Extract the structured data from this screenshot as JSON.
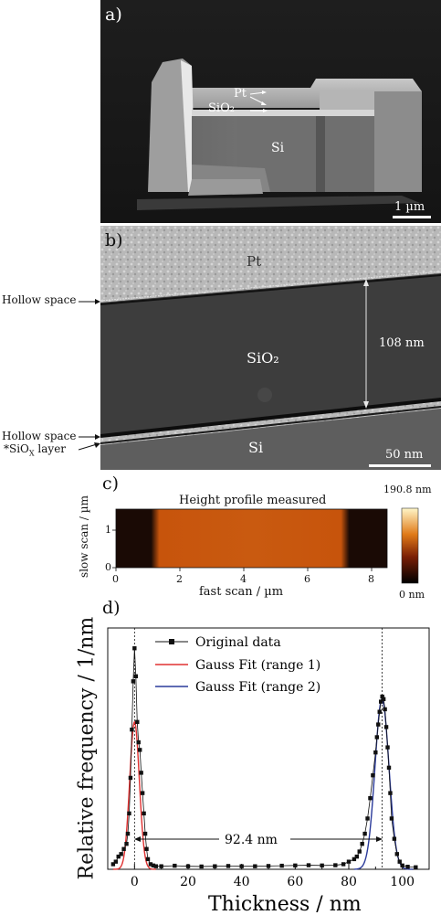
{
  "panel_a": {
    "label": "a)",
    "layers": [
      "Pt",
      "SiO₂",
      "Si"
    ],
    "scalebar": "1 µm"
  },
  "panel_b": {
    "label": "b)",
    "layers": [
      "Pt",
      "SiO₂",
      "Si"
    ],
    "dimension": "108 nm",
    "scalebar": "50 nm",
    "annotations": [
      "Hollow space",
      "Hollow space",
      "*SiO",
      "X",
      " layer"
    ]
  },
  "panel_c": {
    "label": "c)",
    "title": "Height profile measured",
    "xlabel": "fast scan / µm",
    "ylabel": "slow scan / µm",
    "xticks": [
      "0",
      "2",
      "4",
      "6",
      "8"
    ],
    "yticks": [
      "0",
      "1"
    ],
    "colorbar_max": "190.8 nm",
    "colorbar_min": "0 nm",
    "colors": {
      "dark": "#1a0a05",
      "mid": "#c7540c",
      "bright": "#fff6c8"
    }
  },
  "panel_d": {
    "label": "d)",
    "legend": [
      "Original data",
      "Gauss Fit (range 1)",
      "Gauss Fit (range 2)"
    ],
    "annotation": "92.4 nm",
    "xlabel": "Thickness / nm",
    "ylabel": "Relative frequency / 1/nm",
    "colors": {
      "data": "#111111",
      "fit1": "#e03030",
      "fit2": "#2a3a9a"
    }
  },
  "chart_data": {
    "type": "scatter",
    "title": "",
    "xlabel": "Thickness / nm",
    "ylabel": "Relative frequency / 1/nm",
    "xlim": [
      -10,
      110
    ],
    "xticks": [
      0,
      20,
      40,
      60,
      80,
      100
    ],
    "vlines": [
      0,
      92.4
    ],
    "peak_separation": "92.4 nm",
    "series": [
      {
        "name": "Original data",
        "kind": "points",
        "x": [
          -8,
          -7,
          -6,
          -5,
          -4,
          -3,
          -2.5,
          -2,
          -1.5,
          -1,
          -0.5,
          0,
          0.5,
          1,
          1.5,
          2,
          2.5,
          3,
          3.5,
          4,
          4.5,
          5,
          6,
          7,
          8,
          10,
          15,
          20,
          25,
          30,
          35,
          40,
          45,
          50,
          55,
          60,
          65,
          70,
          75,
          78,
          80,
          82,
          83,
          84,
          85,
          86,
          87,
          88,
          89,
          90,
          90.5,
          91,
          91.5,
          92,
          92.5,
          93,
          93.5,
          94,
          94.5,
          95,
          95.5,
          96,
          97,
          98,
          99,
          100,
          102,
          105
        ],
        "y": [
          0.02,
          0.03,
          0.05,
          0.06,
          0.08,
          0.1,
          0.14,
          0.22,
          0.36,
          0.55,
          0.74,
          0.87,
          0.76,
          0.58,
          0.5,
          0.47,
          0.38,
          0.3,
          0.22,
          0.14,
          0.08,
          0.04,
          0.02,
          0.015,
          0.012,
          0.012,
          0.014,
          0.012,
          0.011,
          0.012,
          0.013,
          0.012,
          0.012,
          0.013,
          0.014,
          0.015,
          0.016,
          0.015,
          0.016,
          0.02,
          0.03,
          0.04,
          0.05,
          0.07,
          0.1,
          0.14,
          0.2,
          0.28,
          0.37,
          0.46,
          0.52,
          0.57,
          0.62,
          0.66,
          0.68,
          0.67,
          0.63,
          0.56,
          0.48,
          0.4,
          0.3,
          0.2,
          0.12,
          0.06,
          0.03,
          0.015,
          0.01,
          0.008
        ]
      },
      {
        "name": "Gauss Fit (range 1)",
        "kind": "gauss",
        "mu": 0,
        "sigma": 1.8,
        "amp": 0.58,
        "range": [
          -8,
          8
        ]
      },
      {
        "name": "Gauss Fit (range 2)",
        "kind": "gauss",
        "mu": 92.4,
        "sigma": 2.6,
        "amp": 0.67,
        "range": [
          82,
          104
        ]
      }
    ]
  }
}
